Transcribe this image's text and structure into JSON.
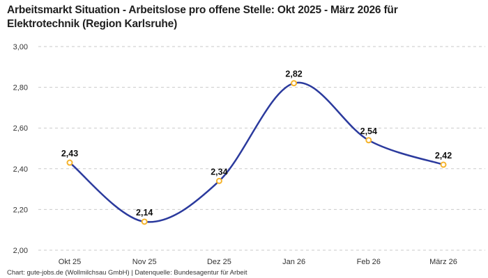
{
  "header": {
    "title": "Arbeitsmarkt Situation - Arbeitslose pro offene Stelle: Okt 2025 - März 2026 für Elektrotechnik (Region Karlsruhe)"
  },
  "footer": {
    "caption": "Chart: gute-jobs.de (Wollmilchsau GmbH) | Datenquelle: Bundesagentur für Arbeit"
  },
  "chart_data": {
    "type": "line",
    "title": "Arbeitsmarkt Situation - Arbeitslose pro offene Stelle: Okt 2025 - März 2026 für Elektrotechnik (Region Karlsruhe)",
    "categories": [
      "Okt 25",
      "Nov 25",
      "Dez 25",
      "Jan 26",
      "Feb 26",
      "März 26"
    ],
    "values": [
      2.43,
      2.14,
      2.34,
      2.82,
      2.54,
      2.42
    ],
    "point_labels": [
      "2,43",
      "2,14",
      "2,34",
      "2,82",
      "2,54",
      "2,42"
    ],
    "y_tick_labels": [
      "3,00",
      "2,80",
      "2,60",
      "2,40",
      "2,20",
      "2,00"
    ],
    "y_tick_values": [
      3.0,
      2.8,
      2.6,
      2.4,
      2.2,
      2.0
    ],
    "ylim": [
      2.0,
      3.0
    ],
    "xlabel": "",
    "ylabel": "",
    "grid": "horizontal-dashed",
    "legend": "none",
    "colors": {
      "line": "#2b3a9d",
      "marker_ring": "#f5b32b",
      "marker_fill": "#ffffff",
      "gridline": "#c9c9c9",
      "axis_label": "#333333",
      "point_label": "#111111"
    }
  }
}
